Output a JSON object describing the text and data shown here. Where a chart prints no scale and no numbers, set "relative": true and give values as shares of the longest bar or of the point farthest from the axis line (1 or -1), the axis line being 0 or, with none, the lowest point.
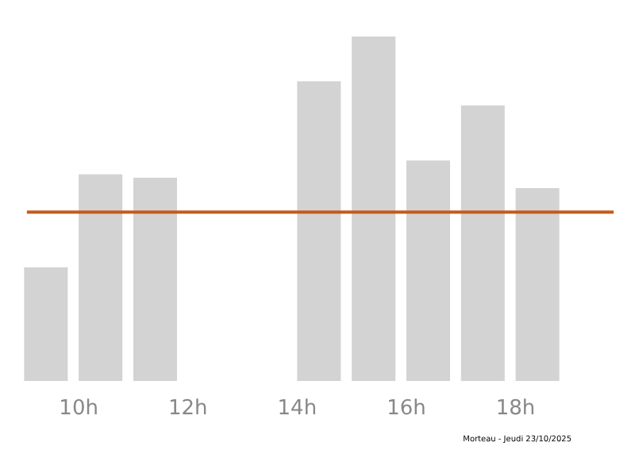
{
  "chart_data": {
    "type": "bar",
    "relative": true,
    "x": [
      9.4,
      10.4,
      11.4,
      14.4,
      15.4,
      16.4,
      17.4,
      18.4
    ],
    "values": [
      0.33,
      0.6,
      0.59,
      0.87,
      1,
      0.64,
      0.8,
      0.56
    ],
    "color": "#d3d3d3",
    "xlim": [
      8.85,
      19.75
    ],
    "xticks": [
      {
        "value": 10,
        "label": "10h"
      },
      {
        "value": 12,
        "label": "12h"
      },
      {
        "value": 14,
        "label": "14h"
      },
      {
        "value": 16,
        "label": "16h"
      },
      {
        "value": 18,
        "label": "18h"
      }
    ],
    "ref_lines": [
      {
        "axis": "y",
        "value": 0.49,
        "color": "#c65a1e"
      }
    ],
    "annotations": [
      "Morteau - Jeudi 23/10/2025"
    ],
    "grid": false
  }
}
